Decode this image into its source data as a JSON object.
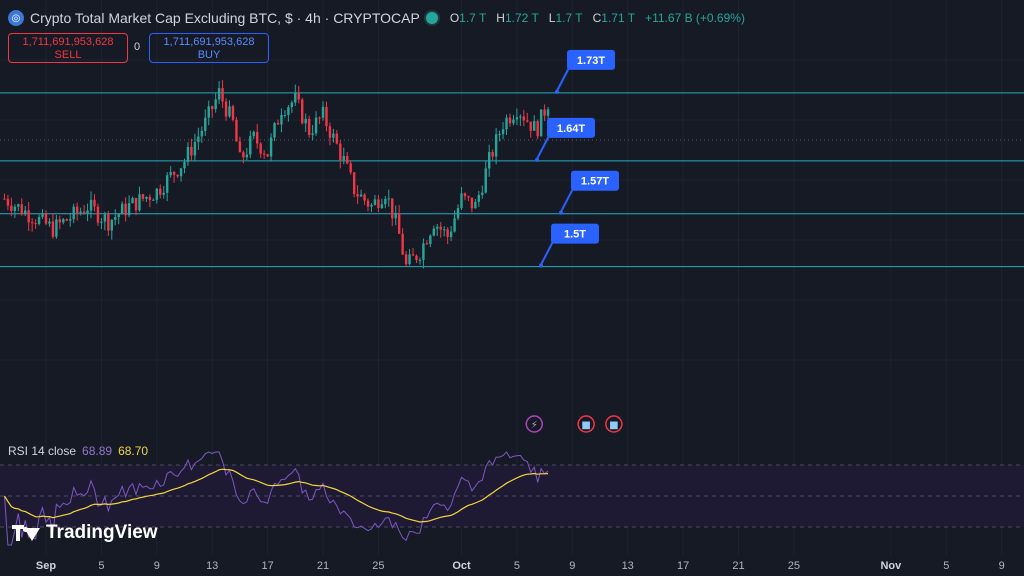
{
  "header": {
    "title": "Crypto Total Market Cap Excluding BTC, $ · 4h · CRYPTOCAP",
    "ohlc": [
      {
        "k": "O",
        "v": "1.7 T"
      },
      {
        "k": "H",
        "v": "1.72 T"
      },
      {
        "k": "L",
        "v": "1.7 T"
      },
      {
        "k": "C",
        "v": "1.71 T"
      },
      {
        "k": "",
        "v": "+11.67 B (+0.69%)"
      }
    ]
  },
  "trade": {
    "sell_price": "1,711,691,953,628",
    "sell_label": "SELL",
    "spread": "0",
    "buy_price": "1,711,691,953,628",
    "buy_label": "BUY"
  },
  "rsi": {
    "label": "RSI 14 close",
    "value": "68.89",
    "ma_value": "68.70"
  },
  "logo": {
    "text": "TradingView"
  },
  "colors": {
    "background": "#161a25",
    "up": "#26a69a",
    "down": "#f23645",
    "level_line": "#26c6da",
    "tag": "#2962ff",
    "rsi": "#7e57c2",
    "rsi_ma": "#f5d53f"
  },
  "chart_data": {
    "type": "candlestick",
    "timeframe": "4h",
    "ylim": [
      1.33,
      1.8
    ],
    "levels": [
      {
        "label": "1.73T",
        "value": 1.73
      },
      {
        "label": "1.64T",
        "value": 1.64
      },
      {
        "label": "1.57T",
        "value": 1.57
      },
      {
        "label": "1.5T",
        "value": 1.5
      }
    ],
    "x_ticks": [
      {
        "label": "Sep",
        "bold": true,
        "day": 0
      },
      {
        "label": "5",
        "day": 4
      },
      {
        "label": "9",
        "day": 8
      },
      {
        "label": "13",
        "day": 12
      },
      {
        "label": "17",
        "day": 16
      },
      {
        "label": "21",
        "day": 20
      },
      {
        "label": "25",
        "day": 24
      },
      {
        "label": "Oct",
        "bold": true,
        "day": 30
      },
      {
        "label": "5",
        "day": 34
      },
      {
        "label": "9",
        "day": 38
      },
      {
        "label": "13",
        "day": 42
      },
      {
        "label": "17",
        "day": 46
      },
      {
        "label": "21",
        "day": 50
      },
      {
        "label": "25",
        "day": 54
      },
      {
        "label": "Nov",
        "bold": true,
        "day": 61
      },
      {
        "label": "5",
        "day": 65
      },
      {
        "label": "9",
        "day": 69
      }
    ],
    "price_path": [
      [
        -3,
        1.59
      ],
      [
        0.5,
        1.55
      ],
      [
        3,
        1.58
      ],
      [
        4.5,
        1.56
      ],
      [
        6,
        1.58
      ],
      [
        8,
        1.6
      ],
      [
        10,
        1.64
      ],
      [
        11.5,
        1.69
      ],
      [
        12.5,
        1.73
      ],
      [
        13.5,
        1.69
      ],
      [
        14,
        1.64
      ],
      [
        15,
        1.67
      ],
      [
        16,
        1.65
      ],
      [
        17,
        1.71
      ],
      [
        18,
        1.72
      ],
      [
        19,
        1.68
      ],
      [
        20,
        1.7
      ],
      [
        21,
        1.66
      ],
      [
        21.5,
        1.64
      ],
      [
        22.3,
        1.6
      ],
      [
        23.5,
        1.58
      ],
      [
        24.5,
        1.6
      ],
      [
        25.4,
        1.55
      ],
      [
        26,
        1.5
      ],
      [
        27,
        1.52
      ],
      [
        28,
        1.56
      ],
      [
        29,
        1.54
      ],
      [
        30,
        1.59
      ],
      [
        31,
        1.58
      ],
      [
        32,
        1.64
      ],
      [
        33,
        1.69
      ],
      [
        34,
        1.71
      ],
      [
        34.5,
        1.7
      ],
      [
        35.4,
        1.68
      ],
      [
        36.3,
        1.72
      ]
    ],
    "rsi_scale": {
      "levels": [
        70,
        50,
        30
      ]
    },
    "event_icons": [
      {
        "name": "lightning-icon",
        "day": 35.4
      },
      {
        "name": "us-flag-icon",
        "day": 39
      },
      {
        "name": "us-flag-icon",
        "day": 41
      }
    ]
  }
}
